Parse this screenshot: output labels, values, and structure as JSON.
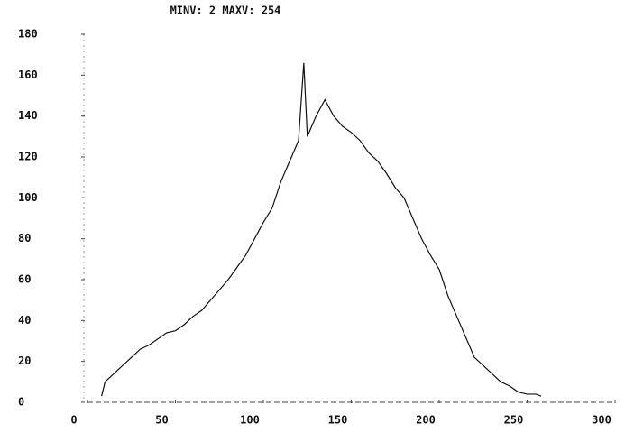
{
  "chart_data": {
    "type": "line",
    "title": "MINV: 2 MAXV: 254",
    "x": [
      8,
      10,
      15,
      20,
      25,
      30,
      35,
      40,
      45,
      50,
      55,
      60,
      65,
      70,
      75,
      80,
      85,
      90,
      95,
      100,
      105,
      110,
      115,
      120,
      123,
      125,
      130,
      135,
      140,
      145,
      150,
      155,
      160,
      165,
      170,
      175,
      180,
      185,
      190,
      195,
      200,
      205,
      210,
      215,
      220,
      225,
      230,
      235,
      240,
      245,
      250,
      255,
      258
    ],
    "values": [
      3,
      10,
      14,
      18,
      22,
      26,
      28,
      31,
      34,
      35,
      38,
      42,
      45,
      50,
      55,
      60,
      66,
      72,
      80,
      88,
      95,
      108,
      118,
      128,
      166,
      130,
      140,
      148,
      140,
      135,
      132,
      128,
      122,
      118,
      112,
      105,
      100,
      90,
      80,
      72,
      65,
      52,
      42,
      32,
      22,
      18,
      14,
      10,
      8,
      5,
      4,
      4,
      3
    ],
    "color": "#111111",
    "xlim": [
      0,
      300
    ],
    "xticks": [
      0,
      50,
      100,
      150,
      200,
      250,
      300
    ],
    "ylim": [
      0,
      180
    ],
    "yticks": [
      0,
      20,
      40,
      60,
      80,
      100,
      120,
      140,
      160,
      180
    ],
    "grid": false
  }
}
